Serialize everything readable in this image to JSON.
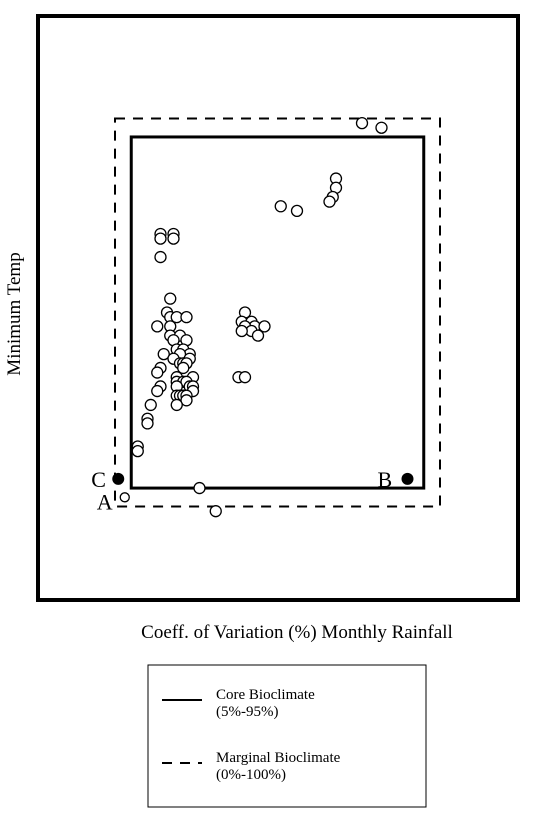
{
  "chart_data": {
    "type": "scatter",
    "xlabel": "Coeff. of Variation (%) Monthly Rainfall",
    "ylabel": "Minimum Temp",
    "grid": false,
    "legend": "bottom-center",
    "xlim": [
      0,
      100
    ],
    "ylim": [
      0,
      100
    ],
    "series": [
      {
        "marker": "open-circle",
        "points": [
          [
            76,
            95
          ],
          [
            82,
            94
          ],
          [
            68,
            83
          ],
          [
            68,
            81
          ],
          [
            67,
            79
          ],
          [
            66,
            78
          ],
          [
            51,
            77
          ],
          [
            56,
            76
          ],
          [
            14,
            71
          ],
          [
            18,
            71
          ],
          [
            18,
            70
          ],
          [
            14,
            70
          ],
          [
            14,
            66
          ],
          [
            17,
            57
          ],
          [
            16,
            54
          ],
          [
            17,
            53
          ],
          [
            19,
            53
          ],
          [
            22,
            53
          ],
          [
            13,
            51
          ],
          [
            17,
            51
          ],
          [
            17,
            49
          ],
          [
            20,
            49
          ],
          [
            22,
            48
          ],
          [
            18,
            48
          ],
          [
            19,
            46
          ],
          [
            21,
            46
          ],
          [
            23,
            45
          ],
          [
            15,
            45
          ],
          [
            20,
            45
          ],
          [
            18,
            44
          ],
          [
            23,
            44
          ],
          [
            20,
            43
          ],
          [
            21,
            43
          ],
          [
            22,
            43
          ],
          [
            14,
            42
          ],
          [
            21,
            42
          ],
          [
            13,
            41
          ],
          [
            19,
            40
          ],
          [
            24,
            40
          ],
          [
            19,
            39
          ],
          [
            21,
            39
          ],
          [
            22,
            39
          ],
          [
            14,
            38
          ],
          [
            19,
            38
          ],
          [
            23,
            38
          ],
          [
            24,
            38
          ],
          [
            24,
            37
          ],
          [
            13,
            37
          ],
          [
            19,
            36
          ],
          [
            20,
            36
          ],
          [
            21,
            36
          ],
          [
            22,
            36
          ],
          [
            22,
            35
          ],
          [
            19,
            34
          ],
          [
            11,
            34
          ],
          [
            40,
            54
          ],
          [
            39,
            52
          ],
          [
            42,
            52
          ],
          [
            43,
            51
          ],
          [
            40,
            51
          ],
          [
            46,
            51
          ],
          [
            42,
            50
          ],
          [
            39,
            50
          ],
          [
            44,
            49
          ],
          [
            38,
            40
          ],
          [
            40,
            40
          ],
          [
            10,
            31
          ],
          [
            10,
            30
          ],
          [
            7,
            25
          ],
          [
            7,
            24
          ],
          [
            26,
            16
          ],
          [
            31,
            11
          ]
        ]
      },
      {
        "marker": "filled-circle",
        "points": [
          [
            1,
            18
          ],
          [
            90,
            18
          ]
        ]
      },
      {
        "marker": "small-open-circle",
        "points": [
          [
            3,
            14
          ]
        ]
      }
    ],
    "bounds": [
      {
        "name": "Core Bioclimate",
        "range": "(5%-95%)",
        "style": "solid",
        "xlim": [
          5,
          95
        ],
        "ylim": [
          16,
          92
        ]
      },
      {
        "name": "Marginal Bioclimate",
        "range": "(0%-100%)",
        "style": "dashed",
        "xlim": [
          0,
          100
        ],
        "ylim": [
          12,
          96
        ]
      }
    ],
    "annotations": [
      {
        "text": "C",
        "x": 1,
        "y": 18
      },
      {
        "text": "B",
        "x": 90,
        "y": 18
      },
      {
        "text": "A",
        "x": 3,
        "y": 14
      }
    ]
  }
}
